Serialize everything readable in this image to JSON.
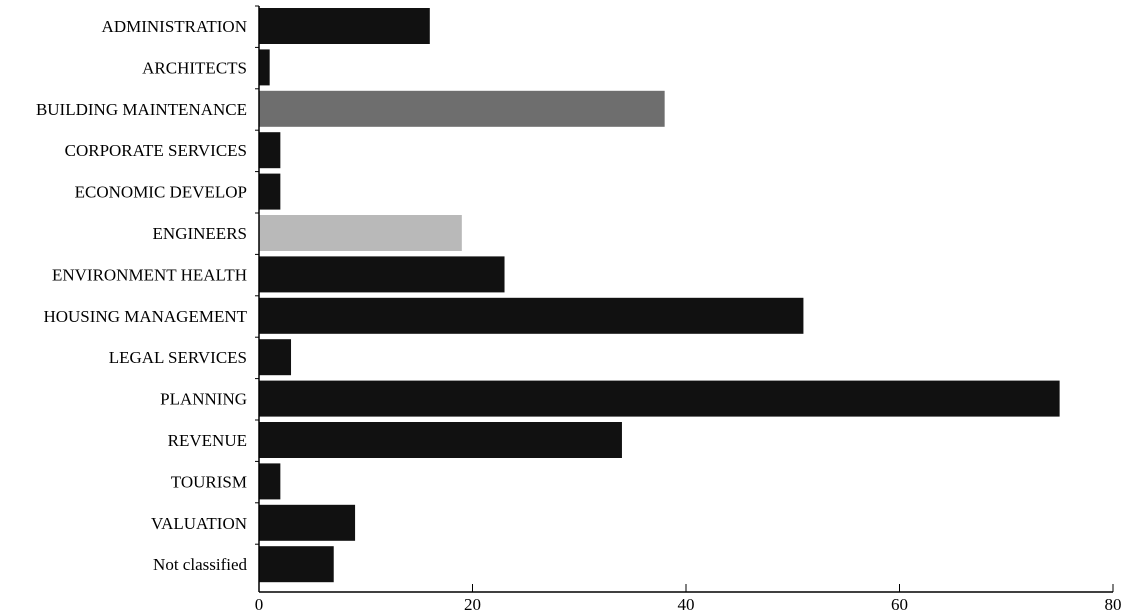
{
  "chart_data": {
    "type": "bar",
    "orientation": "horizontal",
    "categories": [
      "ADMINISTRATION",
      "ARCHITECTS",
      "BUILDING MAINTENANCE",
      "CORPORATE SERVICES",
      "ECONOMIC DEVELOP",
      "ENGINEERS",
      "ENVIRONMENT HEALTH",
      "HOUSING MANAGEMENT",
      "LEGAL SERVICES",
      "PLANNING",
      "REVENUE",
      "TOURISM",
      "VALUATION",
      "Not classified"
    ],
    "values": [
      16,
      1,
      38,
      2,
      2,
      19,
      23,
      51,
      3,
      75,
      34,
      2,
      9,
      7
    ],
    "bar_colors": [
      "#111111",
      "#111111",
      "#6e6e6e",
      "#111111",
      "#111111",
      "#b9b9b9",
      "#111111",
      "#111111",
      "#111111",
      "#111111",
      "#111111",
      "#111111",
      "#111111",
      "#111111"
    ],
    "xlim": [
      0,
      80
    ],
    "xticks": [
      0,
      20,
      40,
      60,
      80
    ],
    "xtick_labels": [
      "0",
      "20",
      "40",
      "60",
      "80"
    ],
    "title": "",
    "xlabel": "",
    "ylabel": "",
    "grid": false,
    "legend": "none"
  }
}
